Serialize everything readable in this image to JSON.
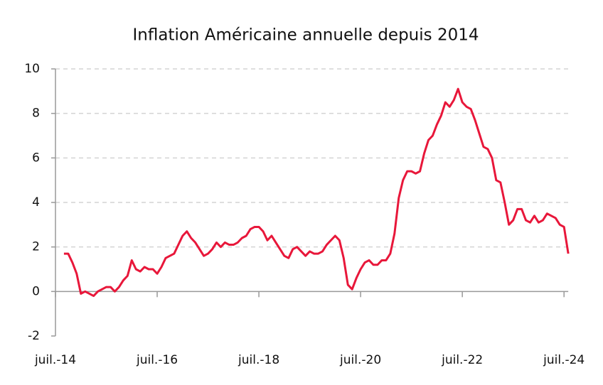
{
  "chart_data": {
    "type": "line",
    "title": "Inflation Américaine annuelle depuis 2014",
    "categories": [
      "juil.-14",
      null,
      null,
      null,
      null,
      null,
      null,
      null,
      null,
      null,
      null,
      null,
      null,
      null,
      null,
      null,
      null,
      null,
      null,
      null,
      null,
      null,
      null,
      null,
      "juil.-16",
      null,
      null,
      null,
      null,
      null,
      null,
      null,
      null,
      null,
      null,
      null,
      null,
      null,
      null,
      null,
      null,
      null,
      null,
      null,
      null,
      null,
      null,
      null,
      "juil.-18",
      null,
      null,
      null,
      null,
      null,
      null,
      null,
      null,
      null,
      null,
      null,
      null,
      null,
      null,
      null,
      null,
      null,
      null,
      null,
      null,
      null,
      null,
      null,
      "juil.-20",
      null,
      null,
      null,
      null,
      null,
      null,
      null,
      null,
      null,
      null,
      null,
      null,
      null,
      null,
      null,
      null,
      null,
      null,
      null,
      null,
      null,
      null,
      null,
      "juil.-22",
      null,
      null,
      null,
      null,
      null,
      null,
      null,
      null,
      null,
      null,
      null,
      null,
      null,
      null,
      null,
      null,
      null,
      null,
      null,
      null,
      null,
      null,
      null,
      "juil.-24",
      null
    ],
    "series": [
      {
        "name": "Inflation",
        "color": "#e8173a",
        "values": [
          null,
          null,
          1.7,
          1.7,
          1.3,
          0.8,
          -0.1,
          0.0,
          -0.1,
          -0.2,
          0.0,
          0.1,
          0.2,
          0.2,
          0.0,
          0.2,
          0.5,
          0.7,
          1.4,
          1.0,
          0.9,
          1.1,
          1.0,
          1.0,
          0.8,
          1.1,
          1.5,
          1.6,
          1.7,
          2.1,
          2.5,
          2.7,
          2.4,
          2.2,
          1.9,
          1.6,
          1.7,
          1.9,
          2.2,
          2.0,
          2.2,
          2.1,
          2.1,
          2.2,
          2.4,
          2.5,
          2.8,
          2.9,
          2.9,
          2.7,
          2.3,
          2.5,
          2.2,
          1.9,
          1.6,
          1.5,
          1.9,
          2.0,
          1.8,
          1.6,
          1.8,
          1.7,
          1.7,
          1.8,
          2.1,
          2.3,
          2.5,
          2.3,
          1.5,
          0.3,
          0.1,
          0.6,
          1.0,
          1.3,
          1.4,
          1.2,
          1.2,
          1.4,
          1.4,
          1.7,
          2.6,
          4.2,
          5.0,
          5.4,
          5.4,
          5.3,
          5.4,
          6.2,
          6.8,
          7.0,
          7.5,
          7.9,
          8.5,
          8.3,
          8.6,
          9.1,
          8.5,
          8.3,
          8.2,
          7.7,
          7.1,
          6.5,
          6.4,
          6.0,
          5.0,
          4.9,
          4.0,
          3.0,
          3.2,
          3.7,
          3.7,
          3.2,
          3.1,
          3.4,
          3.1,
          3.2,
          3.5,
          3.4,
          3.3,
          3.0,
          2.9,
          1.7
        ]
      }
    ],
    "ylim": [
      -2,
      10
    ],
    "yticks": [
      -2,
      0,
      2,
      4,
      6,
      8,
      10
    ],
    "grid": true
  }
}
